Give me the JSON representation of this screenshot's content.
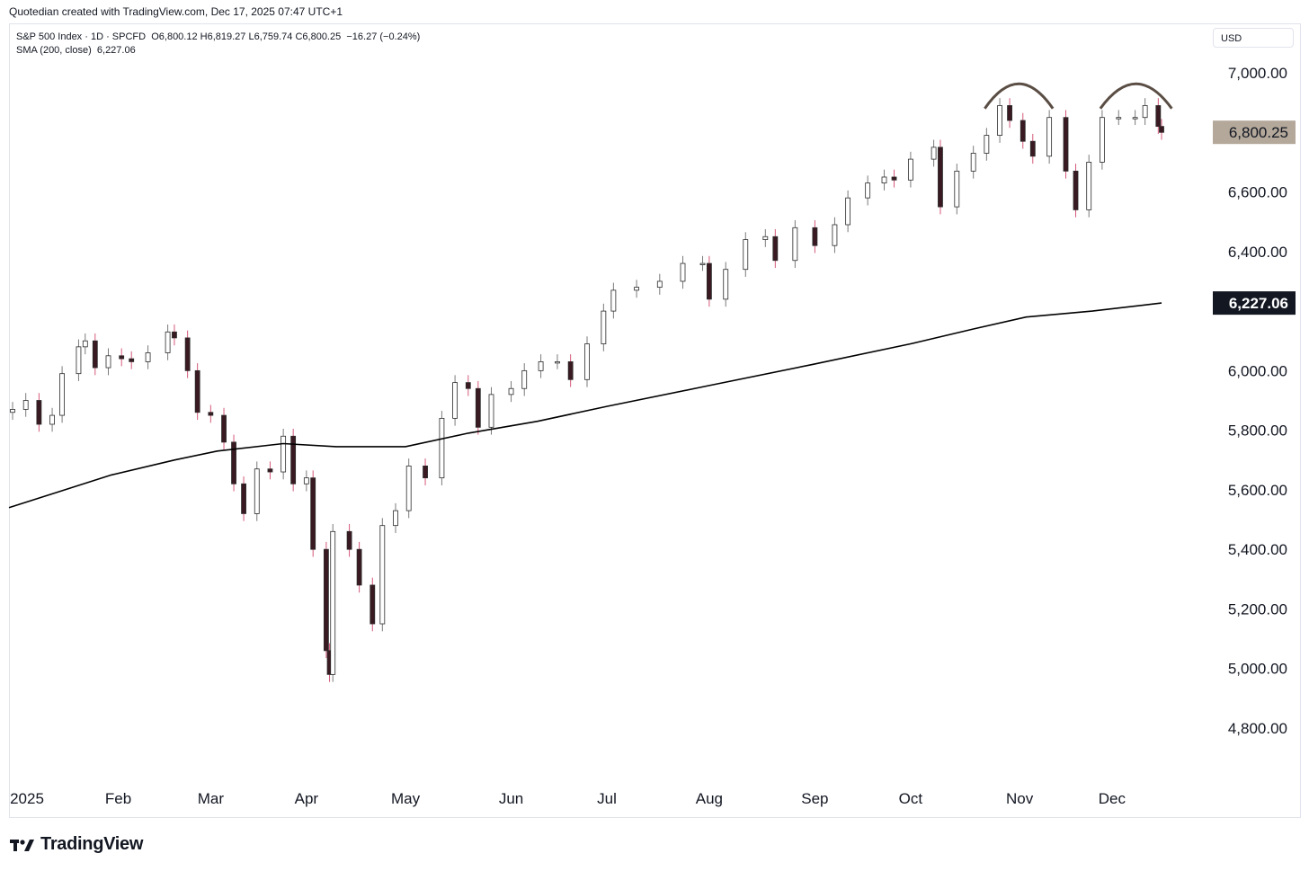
{
  "header": {
    "credit": "Quotedian created with TradingView.com, Dec 17, 2025 07:47 UTC+1"
  },
  "legend": {
    "symbol": "S&P 500 Index · 1D · SPCFD",
    "ohlc": "O6,800.12 H6,819.27 L6,759.74 C6,800.25",
    "change": "−16.27 (−0.24%)",
    "sma": "SMA (200, close)",
    "sma_value": "6,227.06"
  },
  "currency": "USD",
  "footer": {
    "brand": "TradingView",
    "logo_icon": "tradingview-logo-icon"
  },
  "colors": {
    "up_candle": "#ffffff",
    "down_candle": "#3a1a22",
    "wick_down": "#d4597a",
    "wick_up": "#7a7a7a",
    "sma_line": "#000000",
    "price_badge": "#b3a89a",
    "sma_badge": "#131722",
    "annotation": "#5a4d44"
  },
  "chart_data": {
    "type": "candlestick",
    "title": "",
    "xlabel": "",
    "ylabel": "",
    "y_axis_ticks": [
      "7,000.00",
      "6,600.00",
      "6,400.00",
      "6,000.00",
      "5,800.00",
      "5,600.00",
      "5,400.00",
      "5,200.00",
      "5,000.00",
      "4,800.00"
    ],
    "x_axis_ticks": [
      "2025",
      "Feb",
      "Mar",
      "Apr",
      "May",
      "Jun",
      "Jul",
      "Aug",
      "Sep",
      "Oct",
      "Nov",
      "Dec"
    ],
    "ylim": [
      4700,
      7080
    ],
    "last_price_label": "6,800.25",
    "last_price": 6800.25,
    "sma_label": "6,227.06",
    "sma_last": 6227.06,
    "sma_series": {
      "name": "SMA (200, close)",
      "points": [
        [
          "2025-01-02",
          5540
        ],
        [
          "2025-01-15",
          5590
        ],
        [
          "2025-02-01",
          5650
        ],
        [
          "2025-02-20",
          5700
        ],
        [
          "2025-03-05",
          5730
        ],
        [
          "2025-03-25",
          5755
        ],
        [
          "2025-04-10",
          5745
        ],
        [
          "2025-05-01",
          5745
        ],
        [
          "2025-05-20",
          5790
        ],
        [
          "2025-06-10",
          5830
        ],
        [
          "2025-07-01",
          5880
        ],
        [
          "2025-08-01",
          5950
        ],
        [
          "2025-09-01",
          6020
        ],
        [
          "2025-10-01",
          6090
        ],
        [
          "2025-10-20",
          6140
        ],
        [
          "2025-11-05",
          6180
        ],
        [
          "2025-11-25",
          6200
        ],
        [
          "2025-12-16",
          6227
        ]
      ]
    },
    "price_series": [
      [
        "2025-01-02",
        5870
      ],
      [
        "2025-01-06",
        5900
      ],
      [
        "2025-01-10",
        5820
      ],
      [
        "2025-01-14",
        5850
      ],
      [
        "2025-01-17",
        5990
      ],
      [
        "2025-01-22",
        6080
      ],
      [
        "2025-01-24",
        6100
      ],
      [
        "2025-01-27",
        6010
      ],
      [
        "2025-01-31",
        6050
      ],
      [
        "2025-02-04",
        6040
      ],
      [
        "2025-02-07",
        6030
      ],
      [
        "2025-02-12",
        6060
      ],
      [
        "2025-02-18",
        6130
      ],
      [
        "2025-02-20",
        6110
      ],
      [
        "2025-02-24",
        6000
      ],
      [
        "2025-02-27",
        5860
      ],
      [
        "2025-03-03",
        5850
      ],
      [
        "2025-03-07",
        5760
      ],
      [
        "2025-03-10",
        5620
      ],
      [
        "2025-03-13",
        5520
      ],
      [
        "2025-03-17",
        5670
      ],
      [
        "2025-03-21",
        5660
      ],
      [
        "2025-03-25",
        5780
      ],
      [
        "2025-03-28",
        5620
      ],
      [
        "2025-04-01",
        5640
      ],
      [
        "2025-04-03",
        5400
      ],
      [
        "2025-04-07",
        5060
      ],
      [
        "2025-04-08",
        4980
      ],
      [
        "2025-04-09",
        5460
      ],
      [
        "2025-04-14",
        5400
      ],
      [
        "2025-04-17",
        5280
      ],
      [
        "2025-04-21",
        5150
      ],
      [
        "2025-04-24",
        5480
      ],
      [
        "2025-04-28",
        5530
      ],
      [
        "2025-05-02",
        5680
      ],
      [
        "2025-05-07",
        5640
      ],
      [
        "2025-05-12",
        5840
      ],
      [
        "2025-05-16",
        5960
      ],
      [
        "2025-05-20",
        5940
      ],
      [
        "2025-05-23",
        5810
      ],
      [
        "2025-05-27",
        5920
      ],
      [
        "2025-06-02",
        5940
      ],
      [
        "2025-06-06",
        6000
      ],
      [
        "2025-06-11",
        6030
      ],
      [
        "2025-06-16",
        6030
      ],
      [
        "2025-06-20",
        5970
      ],
      [
        "2025-06-25",
        6090
      ],
      [
        "2025-06-30",
        6200
      ],
      [
        "2025-07-03",
        6270
      ],
      [
        "2025-07-10",
        6280
      ],
      [
        "2025-07-17",
        6300
      ],
      [
        "2025-07-24",
        6360
      ],
      [
        "2025-07-30",
        6360
      ],
      [
        "2025-08-01",
        6240
      ],
      [
        "2025-08-06",
        6340
      ],
      [
        "2025-08-12",
        6440
      ],
      [
        "2025-08-18",
        6450
      ],
      [
        "2025-08-21",
        6370
      ],
      [
        "2025-08-27",
        6480
      ],
      [
        "2025-09-02",
        6420
      ],
      [
        "2025-09-08",
        6490
      ],
      [
        "2025-09-12",
        6580
      ],
      [
        "2025-09-18",
        6630
      ],
      [
        "2025-09-23",
        6650
      ],
      [
        "2025-09-26",
        6640
      ],
      [
        "2025-10-01",
        6710
      ],
      [
        "2025-10-08",
        6750
      ],
      [
        "2025-10-10",
        6550
      ],
      [
        "2025-10-15",
        6670
      ],
      [
        "2025-10-20",
        6730
      ],
      [
        "2025-10-24",
        6790
      ],
      [
        "2025-10-28",
        6890
      ],
      [
        "2025-10-31",
        6840
      ],
      [
        "2025-11-04",
        6770
      ],
      [
        "2025-11-07",
        6720
      ],
      [
        "2025-11-12",
        6850
      ],
      [
        "2025-11-17",
        6670
      ],
      [
        "2025-11-20",
        6540
      ],
      [
        "2025-11-24",
        6700
      ],
      [
        "2025-11-28",
        6850
      ],
      [
        "2025-12-03",
        6850
      ],
      [
        "2025-12-08",
        6850
      ],
      [
        "2025-12-11",
        6890
      ],
      [
        "2025-12-15",
        6820
      ],
      [
        "2025-12-16",
        6800
      ]
    ],
    "annotations": [
      {
        "type": "arc",
        "from": "2025-10-24",
        "to": "2025-11-12",
        "level": 6880
      },
      {
        "type": "arc",
        "from": "2025-11-28",
        "to": "2025-12-18",
        "level": 6880
      }
    ],
    "grid": false,
    "legend": "top-left"
  }
}
